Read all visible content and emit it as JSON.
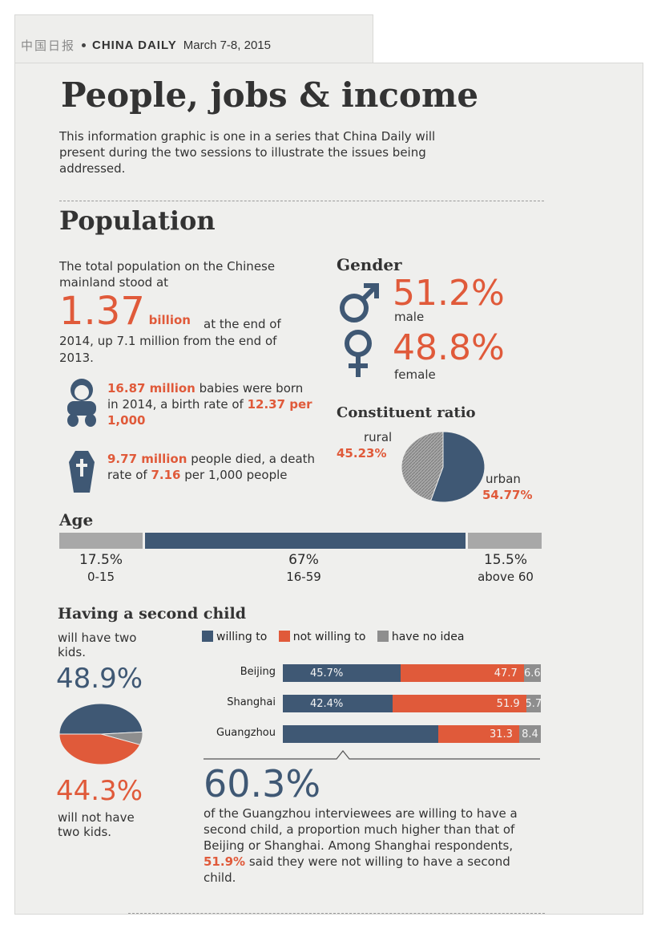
{
  "masthead": {
    "logo": "中国日报",
    "name": "CHINA DAILY",
    "date": "March 7-8, 2015"
  },
  "title": "People, jobs & income",
  "intro": "This information graphic is one in a series that China Daily will present during the two sessions to illustrate the issues being addressed.",
  "population": {
    "heading": "Population",
    "lead": "The total population on the Chinese mainland stood at",
    "big_number": "1.37",
    "billion": "billion",
    "tail": "at the end of 2014, up 7.1 million from the end of 2013.",
    "births": {
      "highlight": "16.87 million",
      "text1": " babies were born in 2014, a birth rate of ",
      "rate": "12.37 per 1,000"
    },
    "deaths": {
      "highlight": "9.77 million",
      "text1": " people died, a death rate of ",
      "rate": "7.16",
      "text2": " per 1,000 people"
    }
  },
  "gender": {
    "heading": "Gender",
    "male_pct": "51.2%",
    "male_label": "male",
    "female_pct": "48.8%",
    "female_label": "female"
  },
  "constituent": {
    "heading": "Constituent ratio",
    "rural_label": "rural",
    "rural_pct": "45.23%",
    "urban_label": "urban",
    "urban_pct": "54.77%",
    "rural_value": 45.23,
    "urban_value": 54.77
  },
  "age": {
    "heading": "Age",
    "groups": [
      {
        "pct": "17.5%",
        "range": "0-15",
        "value": 17.5
      },
      {
        "pct": "67%",
        "range": "16-59",
        "value": 67
      },
      {
        "pct": "15.5%",
        "range": "above 60",
        "value": 15.5
      }
    ]
  },
  "second_child": {
    "heading": "Having a second child",
    "will_label": "will have two kids.",
    "will_pct": "48.9%",
    "wont_pct": "44.3%",
    "wont_label": "will not have two kids.",
    "legend": [
      "willing to",
      "not willing to",
      "have no idea"
    ],
    "colors": {
      "willing": "#3f5874",
      "not_willing": "#e05a3a",
      "no_idea": "#8e8e8e"
    },
    "cities": [
      {
        "name": "Beijing",
        "willing": 45.7,
        "not": 47.7,
        "no_idea": 6.6,
        "willing_lbl": "45.7%",
        "not_lbl": "47.7",
        "idea_lbl": "6.6"
      },
      {
        "name": "Shanghai",
        "willing": 42.4,
        "not": 51.9,
        "no_idea": 5.7,
        "willing_lbl": "42.4%",
        "not_lbl": "51.9",
        "idea_lbl": "5.7"
      },
      {
        "name": "Guangzhou",
        "willing": 60.3,
        "not": 31.3,
        "no_idea": 8.4,
        "willing_lbl": "",
        "not_lbl": "31.3",
        "idea_lbl": "8.4"
      }
    ],
    "pie": {
      "will": 48.9,
      "wont": 44.3,
      "other": 6.8
    },
    "callout_pct": "60.3%",
    "callout_text1": "of the Guangzhou interviewees are willing to have a second child, a proportion much higher than that of Beijing or Shanghai. Among Shanghai respondents, ",
    "callout_highlight": "51.9%",
    "callout_text2": " said they were not willing to have a second child."
  }
}
